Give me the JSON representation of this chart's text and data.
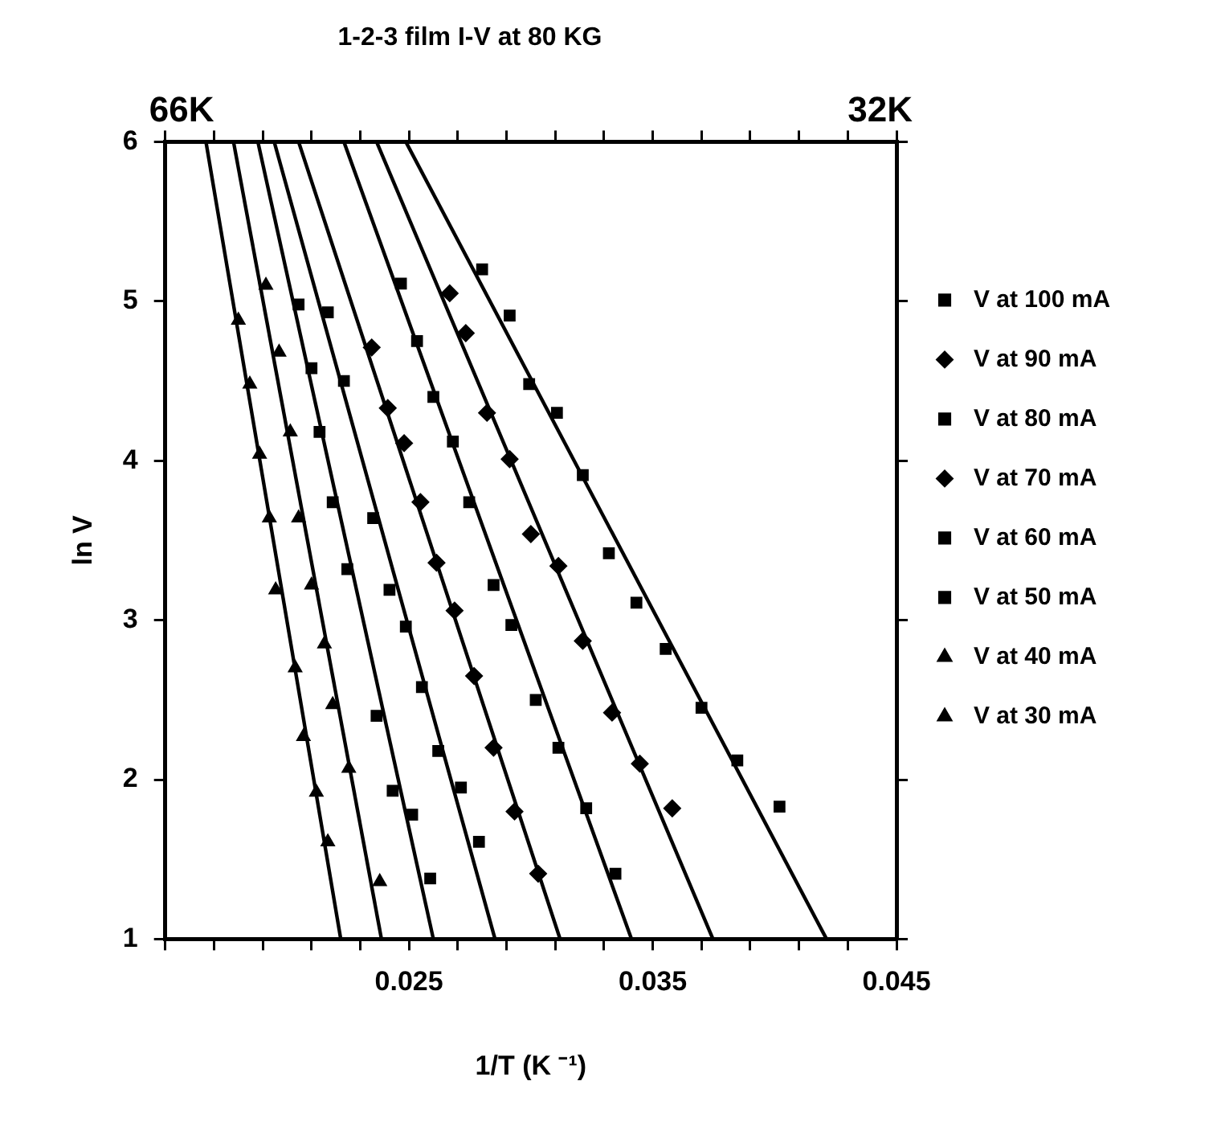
{
  "chart_data": {
    "type": "scatter",
    "title": "1-2-3 film I-V at 80 KG",
    "xlabel": "1/T (K ⁻¹)",
    "ylabel": "ln V",
    "annotations": [
      "66K",
      "32K"
    ],
    "xlim": [
      0.015,
      0.045
    ],
    "ylim": [
      1,
      6
    ],
    "xticks": [
      {
        "value": 0.015,
        "label": null
      },
      {
        "value": 0.017,
        "label": null
      },
      {
        "value": 0.019,
        "label": null
      },
      {
        "value": 0.021,
        "label": null
      },
      {
        "value": 0.023,
        "label": null
      },
      0.025,
      {
        "value": 0.027,
        "label": null
      },
      {
        "value": 0.029,
        "label": null
      },
      {
        "value": 0.031,
        "label": null
      },
      {
        "value": 0.033,
        "label": null
      },
      0.035,
      {
        "value": 0.037,
        "label": null
      },
      {
        "value": 0.039,
        "label": null
      },
      {
        "value": 0.041,
        "label": null
      },
      {
        "value": 0.043,
        "label": null
      },
      0.045
    ],
    "yticks": [
      1,
      2,
      3,
      4,
      5,
      6
    ],
    "grid": false,
    "legend": "right",
    "series": [
      {
        "name": "V at 100 mA",
        "color": "#000000",
        "marker": "square",
        "x": [
          0.028,
          0.02913,
          0.02993,
          0.03107,
          0.03213,
          0.0332,
          0.03433,
          0.03553,
          0.037,
          0.03847,
          0.0402
        ],
        "values": [
          5.2,
          4.91,
          4.48,
          4.3,
          3.91,
          3.42,
          3.11,
          2.82,
          2.45,
          2.12,
          1.83
        ]
      },
      {
        "name": "V at 90 mA",
        "color": "#000000",
        "marker": "diamond",
        "x": [
          0.02667,
          0.02733,
          0.0282,
          0.02913,
          0.03,
          0.03113,
          0.03213,
          0.03333,
          0.03447,
          0.0358
        ],
        "values": [
          5.05,
          4.8,
          4.3,
          4.01,
          3.54,
          3.34,
          2.87,
          2.42,
          2.1,
          1.82
        ]
      },
      {
        "name": "V at 80 mA",
        "color": "#000000",
        "marker": "square",
        "x": [
          0.02467,
          0.02533,
          0.026,
          0.0268,
          0.02747,
          0.02847,
          0.0292,
          0.0302,
          0.03113,
          0.03227,
          0.03347
        ],
        "values": [
          5.11,
          4.75,
          4.4,
          4.12,
          3.74,
          3.22,
          2.97,
          2.5,
          2.2,
          1.82,
          1.41
        ]
      },
      {
        "name": "V at 70 mA",
        "color": "#000000",
        "marker": "diamond",
        "x": [
          0.02347,
          0.02413,
          0.0248,
          0.02547,
          0.02613,
          0.02687,
          0.02767,
          0.02847,
          0.02933,
          0.0303
        ],
        "values": [
          4.71,
          4.33,
          4.11,
          3.74,
          3.36,
          3.06,
          2.65,
          2.2,
          1.8,
          1.41
        ]
      },
      {
        "name": "V at 60 mA",
        "color": "#000000",
        "marker": "square",
        "x": [
          0.02167,
          0.02233,
          0.02353,
          0.0242,
          0.02487,
          0.02553,
          0.0262,
          0.02713,
          0.02787
        ],
        "values": [
          4.93,
          4.5,
          3.64,
          3.19,
          2.96,
          2.58,
          2.18,
          1.95,
          1.61
        ]
      },
      {
        "name": "V at 50 mA",
        "color": "#000000",
        "marker": "square",
        "x": [
          0.02047,
          0.021,
          0.02133,
          0.02187,
          0.02247,
          0.02367,
          0.02433,
          0.02513,
          0.02587
        ],
        "values": [
          4.98,
          4.58,
          4.18,
          3.74,
          3.32,
          2.4,
          1.93,
          1.78,
          1.38
        ]
      },
      {
        "name": "V at 40 mA",
        "color": "#000000",
        "marker": "triangle",
        "x": [
          0.01913,
          0.01967,
          0.02013,
          0.02047,
          0.021,
          0.02153,
          0.02187,
          0.02253,
          0.0238
        ],
        "values": [
          5.1,
          4.68,
          4.18,
          3.64,
          3.22,
          2.85,
          2.47,
          2.07,
          1.36
        ]
      },
      {
        "name": "V at 30 mA",
        "color": "#000000",
        "marker": "triangle",
        "x": [
          0.018,
          0.01847,
          0.01887,
          0.01927,
          0.01953,
          0.02033,
          0.02067,
          0.0212,
          0.02167
        ],
        "values": [
          4.88,
          4.48,
          4.04,
          3.64,
          3.19,
          2.7,
          2.27,
          1.92,
          1.61
        ]
      },
      {
        "type": "line",
        "color": "#000000",
        "marker": "none",
        "x": [
          0.02487,
          0.04213
        ],
        "values": [
          6,
          1
        ]
      },
      {
        "type": "line",
        "color": "#000000",
        "marker": "none",
        "x": [
          0.02367,
          0.03747
        ],
        "values": [
          6,
          1
        ]
      },
      {
        "type": "line",
        "color": "#000000",
        "marker": "none",
        "x": [
          0.02233,
          0.03413
        ],
        "values": [
          6,
          1
        ]
      },
      {
        "type": "line",
        "color": "#000000",
        "marker": "none",
        "x": [
          0.02047,
          0.0312
        ],
        "values": [
          6,
          1
        ]
      },
      {
        "type": "line",
        "color": "#000000",
        "marker": "none",
        "x": [
          0.01947,
          0.02853
        ],
        "values": [
          6,
          1
        ]
      },
      {
        "type": "line",
        "color": "#000000",
        "marker": "none",
        "x": [
          0.0188,
          0.026
        ],
        "values": [
          6,
          1
        ]
      },
      {
        "type": "line",
        "color": "#000000",
        "marker": "none",
        "x": [
          0.0178,
          0.02387
        ],
        "values": [
          6,
          1
        ]
      },
      {
        "type": "line",
        "color": "#000000",
        "marker": "none",
        "x": [
          0.01667,
          0.0222
        ],
        "values": [
          6,
          1
        ]
      }
    ]
  }
}
